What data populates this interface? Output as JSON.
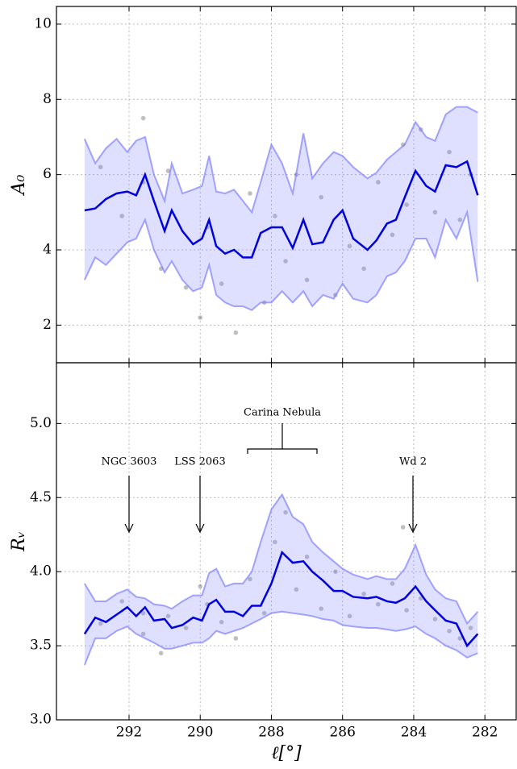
{
  "chart_data": [
    {
      "type": "band-scatter",
      "ylabel": "A₀",
      "x": [
        293.25,
        292.95,
        292.65,
        292.35,
        292.05,
        291.8,
        291.55,
        291.3,
        291.0,
        290.8,
        290.5,
        290.2,
        289.95,
        289.75,
        289.55,
        289.3,
        289.05,
        288.8,
        288.55,
        288.3,
        288.0,
        287.7,
        287.4,
        287.1,
        286.85,
        286.55,
        286.25,
        286.0,
        285.7,
        285.3,
        285.05,
        284.75,
        284.5,
        284.25,
        283.95,
        283.65,
        283.4,
        283.1,
        282.8,
        282.5,
        282.2
      ],
      "line": {
        "color": "#0000dd",
        "values": [
          5.05,
          5.1,
          5.35,
          5.5,
          5.55,
          5.45,
          6.0,
          5.3,
          4.5,
          5.05,
          4.5,
          4.15,
          4.3,
          4.8,
          4.1,
          3.9,
          4.0,
          3.8,
          3.8,
          4.45,
          4.6,
          4.6,
          4.05,
          4.8,
          4.15,
          4.2,
          4.8,
          5.05,
          4.3,
          4.0,
          4.25,
          4.7,
          4.8,
          5.4,
          6.1,
          5.7,
          5.55,
          6.25,
          6.2,
          6.35,
          5.45
        ]
      },
      "band": {
        "color": "#7f7fff",
        "upper": [
          6.95,
          6.3,
          6.7,
          6.95,
          6.6,
          6.9,
          7.0,
          6.0,
          5.3,
          6.3,
          5.5,
          5.6,
          5.7,
          6.5,
          5.55,
          5.5,
          5.6,
          5.3,
          5.0,
          5.8,
          6.8,
          6.3,
          5.5,
          7.1,
          5.9,
          6.3,
          6.6,
          6.5,
          6.2,
          5.9,
          6.05,
          6.4,
          6.6,
          6.8,
          7.4,
          7.0,
          6.9,
          7.6,
          7.8,
          7.8,
          7.65
        ],
        "lower": [
          3.2,
          3.8,
          3.6,
          3.9,
          4.2,
          4.3,
          4.8,
          4.0,
          3.4,
          3.7,
          3.2,
          2.9,
          3.0,
          3.6,
          2.8,
          2.6,
          2.5,
          2.5,
          2.4,
          2.6,
          2.6,
          2.9,
          2.6,
          2.9,
          2.5,
          2.8,
          2.7,
          3.1,
          2.7,
          2.6,
          2.8,
          3.3,
          3.4,
          3.7,
          4.3,
          4.3,
          3.8,
          4.8,
          4.3,
          5.0,
          3.15
        ]
      },
      "points": {
        "color": "#000000",
        "x": [
          292.8,
          292.2,
          291.6,
          291.6,
          291.1,
          290.9,
          290.4,
          290.0,
          289.8,
          289.4,
          289.0,
          288.6,
          288.2,
          287.9,
          287.6,
          287.3,
          287.0,
          286.6,
          286.2,
          285.8,
          285.4,
          285.0,
          284.6,
          284.3,
          284.2,
          283.8,
          283.4,
          283.0,
          282.7,
          282.4
        ],
        "y": [
          6.2,
          4.9,
          7.5,
          5.8,
          3.5,
          6.1,
          3.0,
          2.2,
          4.6,
          3.1,
          1.8,
          5.5,
          2.6,
          4.9,
          3.7,
          6.0,
          3.2,
          5.4,
          2.8,
          4.1,
          3.5,
          5.8,
          4.4,
          6.8,
          5.2,
          7.2,
          5.0,
          6.6,
          4.8,
          6.0
        ]
      },
      "xlim": [
        294.04,
        281.12
      ],
      "ylim": [
        1.0,
        10.47
      ],
      "yticks": [
        2,
        4,
        6,
        8,
        10
      ],
      "grid": true
    },
    {
      "type": "band-scatter",
      "ylabel": "Rᵥ",
      "xlabel": "ℓ[°]",
      "x": [
        293.25,
        292.95,
        292.65,
        292.35,
        292.05,
        291.8,
        291.55,
        291.3,
        291.0,
        290.8,
        290.5,
        290.2,
        289.95,
        289.75,
        289.55,
        289.3,
        289.05,
        288.8,
        288.55,
        288.3,
        288.0,
        287.7,
        287.4,
        287.1,
        286.85,
        286.55,
        286.25,
        286.0,
        285.7,
        285.3,
        285.05,
        284.75,
        284.5,
        284.25,
        283.95,
        283.65,
        283.4,
        283.1,
        282.8,
        282.5,
        282.2
      ],
      "line": {
        "color": "#0000dd",
        "values": [
          3.58,
          3.69,
          3.66,
          3.71,
          3.76,
          3.7,
          3.76,
          3.67,
          3.68,
          3.62,
          3.64,
          3.69,
          3.67,
          3.78,
          3.81,
          3.73,
          3.73,
          3.7,
          3.77,
          3.77,
          3.92,
          4.13,
          4.06,
          4.07,
          4.0,
          3.94,
          3.87,
          3.87,
          3.83,
          3.82,
          3.83,
          3.8,
          3.79,
          3.82,
          3.9,
          3.8,
          3.74,
          3.67,
          3.65,
          3.5,
          3.58
        ]
      },
      "band": {
        "color": "#7f7fff",
        "upper": [
          3.92,
          3.8,
          3.8,
          3.85,
          3.88,
          3.83,
          3.82,
          3.78,
          3.77,
          3.75,
          3.8,
          3.84,
          3.84,
          3.99,
          4.02,
          3.9,
          3.92,
          3.92,
          4.0,
          4.2,
          4.42,
          4.52,
          4.37,
          4.32,
          4.2,
          4.13,
          4.07,
          4.02,
          3.98,
          3.95,
          3.97,
          3.95,
          3.95,
          4.02,
          4.18,
          3.98,
          3.88,
          3.82,
          3.8,
          3.65,
          3.73
        ],
        "lower": [
          3.37,
          3.55,
          3.55,
          3.6,
          3.63,
          3.58,
          3.55,
          3.52,
          3.48,
          3.48,
          3.5,
          3.52,
          3.52,
          3.55,
          3.6,
          3.58,
          3.6,
          3.62,
          3.65,
          3.68,
          3.72,
          3.73,
          3.72,
          3.71,
          3.7,
          3.68,
          3.67,
          3.64,
          3.63,
          3.62,
          3.62,
          3.61,
          3.6,
          3.61,
          3.63,
          3.58,
          3.55,
          3.5,
          3.47,
          3.42,
          3.45
        ]
      },
      "points": {
        "color": "#000000",
        "x": [
          292.8,
          292.2,
          291.6,
          291.6,
          291.1,
          290.9,
          290.4,
          290.0,
          289.8,
          289.4,
          289.0,
          288.6,
          288.2,
          287.9,
          287.6,
          287.3,
          287.0,
          286.6,
          286.2,
          285.8,
          285.4,
          285.0,
          284.6,
          284.3,
          284.2,
          283.8,
          283.4,
          283.0,
          282.7,
          282.4
        ],
        "y": [
          3.65,
          3.8,
          3.72,
          3.58,
          3.45,
          3.7,
          3.62,
          3.9,
          3.78,
          3.66,
          3.55,
          3.95,
          3.72,
          4.2,
          4.4,
          3.88,
          4.1,
          3.75,
          4.0,
          3.7,
          3.85,
          3.78,
          3.92,
          4.3,
          3.74,
          3.82,
          3.68,
          3.6,
          3.55,
          3.62
        ]
      },
      "annotations": [
        "NGC 3603",
        "LSS 2063",
        "Carina Nebula",
        "Wd 2"
      ],
      "xlim": [
        294.04,
        281.12
      ],
      "ylim": [
        3.0,
        5.41
      ],
      "xticks": [
        292,
        290,
        288,
        286,
        284,
        282
      ],
      "yticks": [
        {
          "value": 3.0,
          "label": "3.0"
        },
        {
          "value": 3.5,
          "label": "3.5"
        },
        {
          "value": 4.0,
          "label": "4.0"
        },
        {
          "value": 4.5,
          "label": "4.5"
        },
        {
          "value": 5.0,
          "label": "5.0"
        }
      ],
      "grid": true
    }
  ]
}
